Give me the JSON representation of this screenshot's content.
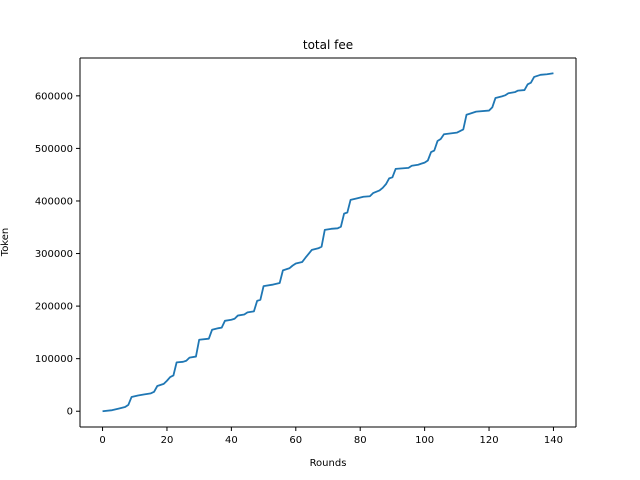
{
  "chart_data": {
    "type": "line",
    "title": "total fee",
    "xlabel": "Rounds",
    "ylabel": "Token",
    "xlim": [
      -7,
      147
    ],
    "ylim": [
      -30000,
      672000
    ],
    "xticks": [
      0,
      20,
      40,
      60,
      80,
      100,
      120,
      140
    ],
    "yticks": [
      0,
      100000,
      200000,
      300000,
      400000,
      500000,
      600000
    ],
    "grid": false,
    "legend": "none",
    "series": [
      {
        "color": "#1f77b4",
        "points": [
          [
            0,
            0
          ],
          [
            3,
            2000
          ],
          [
            5,
            5000
          ],
          [
            7,
            8000
          ],
          [
            8,
            12000
          ],
          [
            9,
            27000
          ],
          [
            11,
            30000
          ],
          [
            13,
            32000
          ],
          [
            15,
            34000
          ],
          [
            16,
            37000
          ],
          [
            17,
            48000
          ],
          [
            19,
            52000
          ],
          [
            20,
            58000
          ],
          [
            21,
            65000
          ],
          [
            22,
            68000
          ],
          [
            23,
            93000
          ],
          [
            25,
            94000
          ],
          [
            26,
            96000
          ],
          [
            27,
            102000
          ],
          [
            29,
            104000
          ],
          [
            30,
            136000
          ],
          [
            33,
            138000
          ],
          [
            34,
            155000
          ],
          [
            36,
            158000
          ],
          [
            37,
            159000
          ],
          [
            38,
            172000
          ],
          [
            40,
            174000
          ],
          [
            41,
            176000
          ],
          [
            42,
            182000
          ],
          [
            44,
            184000
          ],
          [
            45,
            188000
          ],
          [
            47,
            190000
          ],
          [
            48,
            210000
          ],
          [
            49,
            212000
          ],
          [
            50,
            238000
          ],
          [
            53,
            241000
          ],
          [
            55,
            244000
          ],
          [
            56,
            268000
          ],
          [
            58,
            272000
          ],
          [
            59,
            277000
          ],
          [
            60,
            281000
          ],
          [
            62,
            284000
          ],
          [
            63,
            292000
          ],
          [
            65,
            307000
          ],
          [
            67,
            310000
          ],
          [
            68,
            313000
          ],
          [
            69,
            345000
          ],
          [
            71,
            347000
          ],
          [
            73,
            348000
          ],
          [
            74,
            351000
          ],
          [
            75,
            376000
          ],
          [
            76,
            378000
          ],
          [
            77,
            402000
          ],
          [
            79,
            405000
          ],
          [
            81,
            408000
          ],
          [
            83,
            409000
          ],
          [
            84,
            415000
          ],
          [
            86,
            420000
          ],
          [
            87,
            425000
          ],
          [
            88,
            432000
          ],
          [
            89,
            443000
          ],
          [
            90,
            445000
          ],
          [
            91,
            461000
          ],
          [
            93,
            462000
          ],
          [
            95,
            463000
          ],
          [
            96,
            467000
          ],
          [
            98,
            469000
          ],
          [
            99,
            471000
          ],
          [
            100,
            473000
          ],
          [
            101,
            477000
          ],
          [
            102,
            493000
          ],
          [
            103,
            496000
          ],
          [
            104,
            514000
          ],
          [
            105,
            518000
          ],
          [
            106,
            527000
          ],
          [
            110,
            530000
          ],
          [
            112,
            536000
          ],
          [
            113,
            564000
          ],
          [
            114,
            566000
          ],
          [
            116,
            570000
          ],
          [
            120,
            572000
          ],
          [
            121,
            578000
          ],
          [
            122,
            596000
          ],
          [
            124,
            599000
          ],
          [
            125,
            601000
          ],
          [
            126,
            605000
          ],
          [
            128,
            607000
          ],
          [
            129,
            610000
          ],
          [
            131,
            611000
          ],
          [
            132,
            622000
          ],
          [
            133,
            625000
          ],
          [
            134,
            636000
          ],
          [
            136,
            640000
          ],
          [
            138,
            641000
          ],
          [
            140,
            643000
          ]
        ]
      }
    ]
  }
}
